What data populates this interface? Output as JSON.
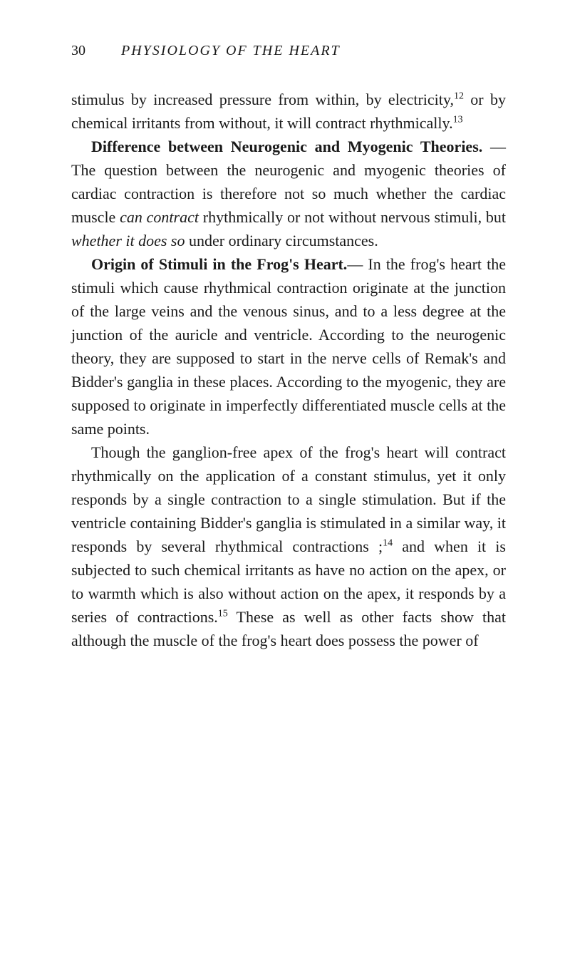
{
  "header": {
    "page_number": "30",
    "running_title": "PHYSIOLOGY OF THE HEART"
  },
  "paragraphs": {
    "p1_part1": "stimulus by increased pressure from within, by electricity,",
    "p1_sup1": "12",
    "p1_part2": " or by chemical irritants from with­out, it will contract rhythmically.",
    "p1_sup2": "13",
    "p2_heading": "Difference between Neurogenic and Myo­genic Theories.",
    "p2_part1": " — The question between the neurogenic and myogenic theories of cardiac contraction is therefore not so much whether the cardiac muscle ",
    "p2_italic1": "can contract",
    "p2_part2": " rhythmically or not without nervous stimuli, but ",
    "p2_italic2": "whether it does so",
    "p2_part3": " under ordinary circumstances.",
    "p3_heading": "Origin of Stimuli in the Frog's Heart.",
    "p3_part1": "— In the frog's heart the stimuli which cause rhythmical contraction originate at the junction of the large veins and the venous sinus, and to a less degree at the junction of the auricle and ventricle. According to the neurogenic theory, they are supposed to start in the nerve cells of Remak's and Bidder's ganglia in these places. According to the myogenic, they are supposed to originate in imperfectly differenti­ated muscle cells at the same points.",
    "p4_part1": "Though the ganglion-free apex of the frog's heart will contract rhythmically on the applica­tion of a constant stimulus, yet it only responds by a single contraction to a single stimulation. But if the ventricle containing Bidder's ganglia is stimulated in a similar way, it responds by several rhythmical contractions ;",
    "p4_sup1": "14",
    "p4_part2": " and when it is subjected to such chemical irritants as have no action on the apex, or to warmth which is also without action on the apex, it responds by a series of contractions.",
    "p4_sup2": "15",
    "p4_part3": " These as well as other facts show that although the muscle of the frog's heart does possess the power of"
  },
  "styles": {
    "body_font_size": 22,
    "header_font_size": 20,
    "sup_font_size": 14,
    "line_height": 1.5,
    "text_color": "#1a1a1a",
    "background_color": "#ffffff"
  }
}
